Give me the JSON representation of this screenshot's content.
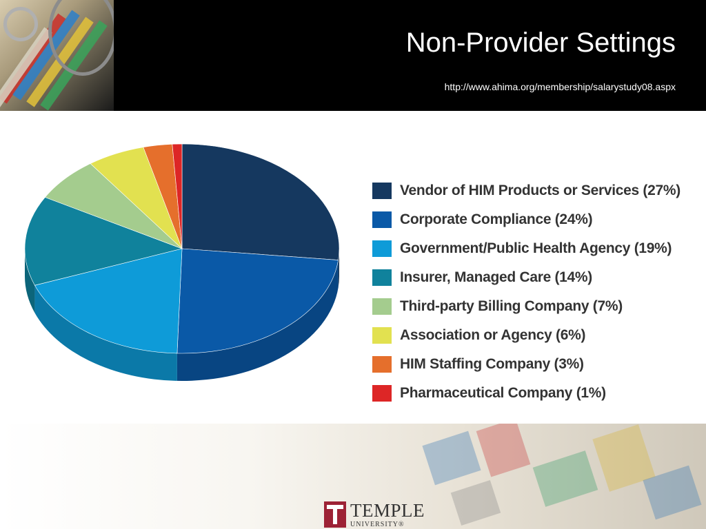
{
  "header": {
    "title": "Non-Provider Settings",
    "url": "http://www.ahima.org/membership/salarystudy08.aspx"
  },
  "chart_data": {
    "type": "pie",
    "title": "",
    "categories": [
      "Vendor of HIM Products or Services",
      "Corporate Compliance",
      "Government/Public Health Agency",
      "Insurer, Managed Care",
      "Third-party Billing Company",
      "Association or Agency",
      "HIM Staffing Company",
      "Pharmaceutical Company"
    ],
    "values": [
      27,
      24,
      19,
      14,
      7,
      6,
      3,
      1
    ],
    "unit": "%",
    "legend_labels": [
      "Vendor of HIM Products or Services (27%)",
      "Corporate Compliance (24%)",
      "Government/Public Health Agency (19%)",
      "Insurer, Managed Care (14%)",
      "Third-party Billing Company (7%)",
      "Association or Agency (6%)",
      "HIM Staffing Company (3%)",
      "Pharmaceutical Company (1%)"
    ],
    "colors": [
      "#15385f",
      "#0a59a7",
      "#0e9bd8",
      "#10829c",
      "#a4cc8e",
      "#e2e150",
      "#e56f2c",
      "#dd2626"
    ],
    "legend_position": "right",
    "style": "3d"
  },
  "logo": {
    "name": "TEMPLE",
    "sub": "UNIVERSITY®"
  }
}
